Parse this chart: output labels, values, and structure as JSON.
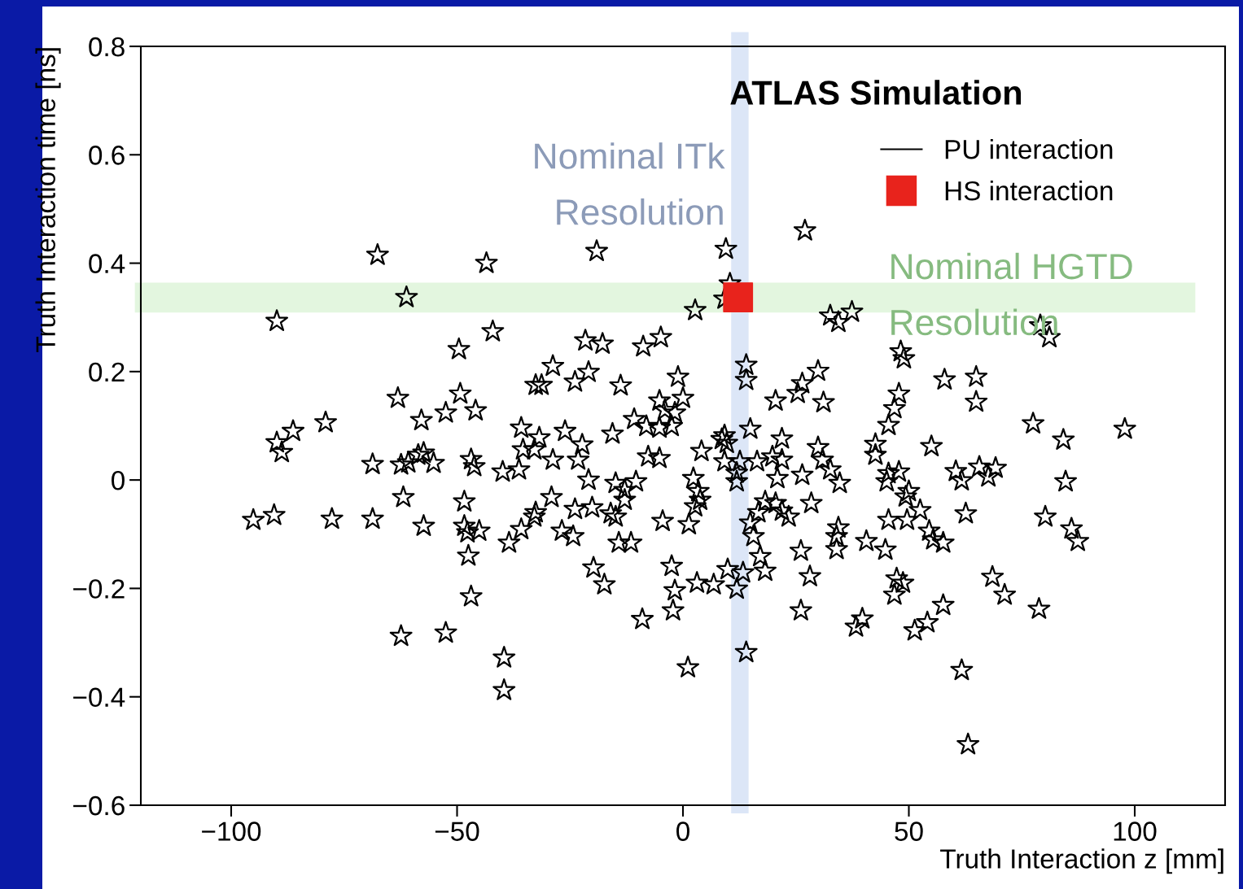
{
  "chart_data": {
    "type": "scatter",
    "xlabel": "Truth Interaction z [mm]",
    "ylabel": "Truth Interaction time [ns]",
    "annotations": [
      "ATLAS Simulation"
    ],
    "xlim": [
      -120,
      120
    ],
    "ylim": [
      -0.6,
      0.8
    ],
    "xticks": [
      {
        "value": -100,
        "label": "−100"
      },
      {
        "value": -50,
        "label": "−50"
      },
      0,
      50,
      100
    ],
    "yticks": [
      {
        "value": -0.6,
        "label": "−0.6"
      },
      {
        "value": -0.4,
        "label": "−0.4"
      },
      {
        "value": -0.2,
        "label": "−0.2"
      },
      0,
      0.2,
      0.4,
      0.6,
      0.8
    ],
    "grid": false,
    "legend": "top right",
    "bands": [
      {
        "axis": "x",
        "from": 10.8,
        "to": 14.4,
        "label": "Nominal ITk\nResolution",
        "color": "#dce6f7"
      },
      {
        "axis": "y",
        "from": 0.31,
        "to": 0.363,
        "label": "Nominal HGTD\nResolution",
        "color": "#e3f6df"
      }
    ],
    "series": [
      {
        "name": "PU interaction",
        "color": "#000000",
        "marker": "star",
        "x": [
          -67.6,
          -43.5,
          -61.2,
          -89.9,
          -42.1,
          -49.6,
          -63.1,
          -49.3,
          -57.9,
          -52.5,
          -45.9,
          -79.1,
          -86.3,
          -89.9,
          -88.8,
          -68.7,
          -62.4,
          -60.8,
          -58.6,
          -57.4,
          -55.2,
          -46.9,
          -46.2,
          -61.9,
          -48.4,
          -95.1,
          -90.5,
          -77.7,
          -68.7,
          -57.4,
          -48.4,
          -47.7,
          -45.1,
          -47.5,
          -46.9,
          -62.4,
          -52.5,
          -19.1,
          9.5,
          2.7,
          -21.6,
          -17.8,
          -8.8,
          -4.9,
          -28.8,
          -32.6,
          -31.3,
          -23.9,
          -20.9,
          -13.8,
          -1.1,
          -5.2,
          0,
          -1.8,
          -4.0,
          -10.8,
          -8.1,
          -5.2,
          -2.5,
          -35.8,
          -31.8,
          -26.1,
          -15.6,
          -35.4,
          -32.9,
          -28.8,
          -23.2,
          -22.3,
          -7.7,
          -5.2,
          -39.9,
          -36.3,
          -20.9,
          -14.9,
          -10.4,
          -12.9,
          -12.9,
          2.3,
          3.4,
          3.8,
          2.7,
          -29.1,
          -32.6,
          -32.9,
          -23.9,
          -20.1,
          -16.0,
          -14.9,
          -35.8,
          -38.5,
          -26.8,
          -24.3,
          -14.2,
          -11.5,
          -4.5,
          1.3,
          4.1,
          -19.8,
          -17.4,
          -2.5,
          -1.8,
          -2.2,
          -9.0,
          3.1,
          6.8,
          -39.6,
          -39.6,
          1.1,
          27.0,
          10.4,
          9.2,
          32.6,
          34.4,
          37.4,
          14.0,
          14.0,
          29.9,
          26.4,
          25.4,
          20.5,
          31.1,
          48.2,
          48.9,
          57.9,
          47.8,
          46.8,
          45.5,
          14.9,
          9.2,
          8.6,
          9.7,
          21.9,
          29.9,
          42.6,
          55.0,
          9.2,
          12.6,
          16.4,
          19.8,
          21.9,
          30.9,
          32.6,
          34.7,
          26.4,
          20.9,
          42.6,
          45.5,
          47.8,
          45.1,
          50.0,
          49.3,
          11.9,
          11.9,
          28.4,
          18.2,
          20.5,
          21.9,
          23.4,
          16.7,
          14.9,
          15.6,
          34.4,
          34.0,
          34.0,
          40.6,
          44.8,
          45.5,
          49.6,
          52.5,
          54.5,
          55.4,
          57.6,
          17.1,
          18.2,
          9.9,
          13.3,
          11.9,
          26.1,
          28.1,
          26.1,
          14.0,
          79.1,
          81.1,
          64.9,
          64.9,
          77.5,
          84.2,
          97.8,
          60.4,
          61.7,
          65.6,
          67.6,
          69.2,
          84.7,
          62.6,
          80.2,
          86.0,
          87.4,
          68.5,
          47.3,
          48.7,
          46.8,
          71.2,
          78.8,
          39.7,
          38.3,
          57.6,
          54.1,
          51.3,
          61.7,
          63.1
        ],
        "values": [
          0.415,
          0.4,
          0.337,
          0.293,
          0.274,
          0.241,
          0.151,
          0.159,
          0.11,
          0.124,
          0.128,
          0.106,
          0.09,
          0.069,
          0.051,
          0.029,
          0.028,
          0.032,
          0.046,
          0.05,
          0.031,
          0.038,
          0.025,
          -0.032,
          -0.04,
          -0.074,
          -0.065,
          -0.072,
          -0.072,
          -0.085,
          -0.085,
          -0.097,
          -0.094,
          -0.14,
          -0.215,
          -0.288,
          -0.282,
          0.422,
          0.426,
          0.313,
          0.257,
          0.251,
          0.246,
          0.263,
          0.21,
          0.175,
          0.175,
          0.181,
          0.199,
          0.174,
          0.19,
          0.146,
          0.151,
          0.124,
          0.129,
          0.112,
          0.099,
          0.096,
          0.099,
          0.096,
          0.078,
          0.09,
          0.085,
          0.056,
          0.056,
          0.037,
          0.037,
          0.065,
          0.043,
          0.04,
          0.015,
          0.019,
          0.0,
          -0.006,
          -0.003,
          -0.019,
          -0.037,
          0.003,
          -0.021,
          -0.037,
          -0.049,
          -0.032,
          -0.06,
          -0.068,
          -0.054,
          -0.051,
          -0.062,
          -0.068,
          -0.091,
          -0.116,
          -0.094,
          -0.104,
          -0.116,
          -0.116,
          -0.076,
          -0.082,
          0.053,
          -0.162,
          -0.193,
          -0.159,
          -0.204,
          -0.241,
          -0.257,
          -0.19,
          -0.193,
          -0.328,
          -0.388,
          -0.346,
          0.46,
          0.362,
          0.334,
          0.303,
          0.291,
          0.31,
          0.212,
          0.184,
          0.201,
          0.178,
          0.16,
          0.146,
          0.143,
          0.237,
          0.224,
          0.185,
          0.159,
          0.132,
          0.101,
          0.094,
          0.082,
          0.075,
          0.068,
          0.076,
          0.06,
          0.066,
          0.062,
          0.034,
          0.034,
          0.034,
          0.043,
          0.037,
          0.037,
          0.019,
          -0.006,
          0.009,
          0.003,
          0.046,
          0.012,
          0.015,
          -0.003,
          -0.021,
          -0.031,
          -0.003,
          0.013,
          -0.043,
          -0.04,
          -0.043,
          -0.057,
          -0.068,
          -0.06,
          -0.079,
          -0.104,
          -0.088,
          -0.104,
          -0.128,
          -0.113,
          -0.129,
          -0.074,
          -0.074,
          -0.056,
          -0.094,
          -0.11,
          -0.116,
          -0.141,
          -0.168,
          -0.165,
          -0.171,
          -0.201,
          -0.131,
          -0.178,
          -0.241,
          -0.318,
          0.285,
          0.263,
          0.19,
          0.144,
          0.104,
          0.074,
          0.094,
          0.016,
          -0.001,
          0.024,
          0.006,
          0.022,
          -0.003,
          -0.062,
          -0.068,
          -0.09,
          -0.113,
          -0.179,
          -0.182,
          -0.19,
          -0.212,
          -0.212,
          -0.238,
          -0.256,
          -0.271,
          -0.231,
          -0.263,
          -0.278,
          -0.351,
          -0.488
        ]
      },
      {
        "name": "HS interaction",
        "color": "#e8231c",
        "marker": "square",
        "x": [
          12.2
        ],
        "values": [
          0.337
        ]
      }
    ]
  }
}
